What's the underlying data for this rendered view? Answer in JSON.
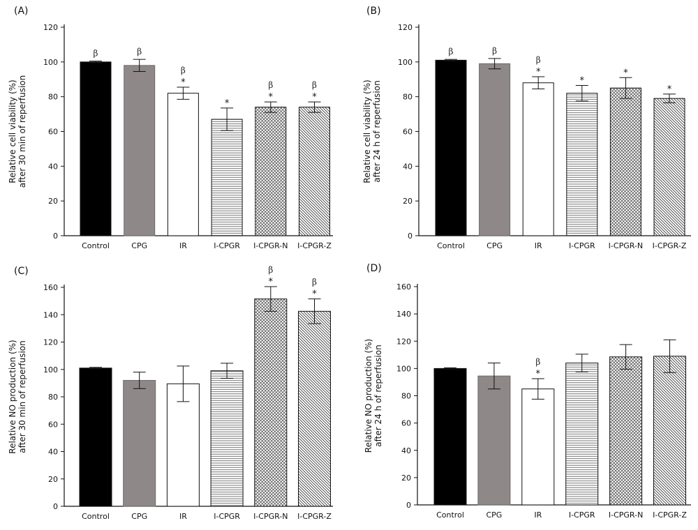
{
  "figure": {
    "series_colors": {
      "Control": "#000000",
      "CPG": "#8f8888",
      "IR": "#ffffff",
      "I-CPGR": "#ffffff",
      "I-CPGR-N": "#ffffff",
      "I-CPGR-Z": "#ffffff"
    },
    "patterns": {
      "Control": "solid-black",
      "CPG": "solid-gray",
      "IR": "none",
      "I-CPGR": "horizontal-lines",
      "I-CPGR-N": "crosshatch",
      "I-CPGR-Z": "diagonal-lines"
    },
    "marker_glyphs": {
      "beta": "β",
      "star": "*"
    }
  },
  "chart_data": [
    {
      "panel": "(A)",
      "type": "bar",
      "categories": [
        "Control",
        "CPG",
        "IR",
        "I-CPGR",
        "I-CPGR-N",
        "I-CPGR-Z"
      ],
      "values": [
        100,
        98,
        82,
        67,
        74,
        74
      ],
      "errors": [
        0.5,
        3.5,
        3.5,
        6.5,
        3,
        3
      ],
      "annotations": [
        {
          "beta": true,
          "star": false
        },
        {
          "beta": true,
          "star": false
        },
        {
          "beta": true,
          "star": true
        },
        {
          "beta": false,
          "star": true
        },
        {
          "beta": true,
          "star": true
        },
        {
          "beta": true,
          "star": true
        }
      ],
      "ylabel_lines": [
        "Relative cell viability (%)",
        "after 30 min of reperfusion"
      ],
      "xlabel": "",
      "ylim": [
        0,
        120
      ],
      "yticks": [
        0,
        20,
        40,
        60,
        80,
        100,
        120
      ],
      "grid": false
    },
    {
      "panel": "(B)",
      "type": "bar",
      "categories": [
        "Control",
        "CPG",
        "IR",
        "I-CPGR",
        "I-CPGR-N",
        "I-CPGR-Z"
      ],
      "values": [
        101,
        99,
        88,
        82,
        85,
        79
      ],
      "errors": [
        0.5,
        3,
        3.5,
        4.5,
        6,
        2.5
      ],
      "annotations": [
        {
          "beta": true,
          "star": false
        },
        {
          "beta": true,
          "star": false
        },
        {
          "beta": true,
          "star": true
        },
        {
          "beta": false,
          "star": true
        },
        {
          "beta": false,
          "star": true
        },
        {
          "beta": false,
          "star": true
        }
      ],
      "ylabel_lines": [
        "Relative cell viability (%)",
        "after 24 h of reperfusion"
      ],
      "xlabel": "",
      "ylim": [
        0,
        120
      ],
      "yticks": [
        0,
        20,
        40,
        60,
        80,
        100,
        120
      ],
      "grid": false
    },
    {
      "panel": "(C)",
      "type": "bar",
      "categories": [
        "Control",
        "CPG",
        "IR",
        "I-CPGR",
        "I-CPGR-N",
        "I-CPGR-Z"
      ],
      "values": [
        101,
        92,
        89.5,
        99,
        151.5,
        142.5
      ],
      "errors": [
        0.5,
        6,
        13,
        5.5,
        9,
        9
      ],
      "annotations": [
        {
          "beta": false,
          "star": false
        },
        {
          "beta": false,
          "star": false
        },
        {
          "beta": false,
          "star": false
        },
        {
          "beta": false,
          "star": false
        },
        {
          "beta": true,
          "star": true
        },
        {
          "beta": true,
          "star": true
        }
      ],
      "ylabel_lines": [
        "Relative NO production (%)",
        "after 30 min of reperfusion"
      ],
      "xlabel": "",
      "ylim": [
        0,
        160
      ],
      "yticks": [
        0,
        20,
        40,
        60,
        80,
        100,
        120,
        140,
        160
      ],
      "grid": false
    },
    {
      "panel": "(D)",
      "type": "bar",
      "categories": [
        "Control",
        "CPG",
        "IR",
        "I-CPGR",
        "I-CPGR-N",
        "I-CPGR-Z"
      ],
      "values": [
        100,
        94.5,
        85,
        104,
        108.5,
        109
      ],
      "errors": [
        0.5,
        9.5,
        7.5,
        6.5,
        9,
        12
      ],
      "annotations": [
        {
          "beta": false,
          "star": false
        },
        {
          "beta": false,
          "star": false
        },
        {
          "beta": true,
          "star": true
        },
        {
          "beta": false,
          "star": false
        },
        {
          "beta": false,
          "star": false
        },
        {
          "beta": false,
          "star": false
        }
      ],
      "ylabel_lines": [
        "Relative NO production (%)",
        "after 24 h of reperfusion"
      ],
      "xlabel": "",
      "ylim": [
        0,
        160
      ],
      "yticks": [
        0,
        20,
        40,
        60,
        80,
        100,
        120,
        140,
        160
      ],
      "grid": false
    }
  ]
}
